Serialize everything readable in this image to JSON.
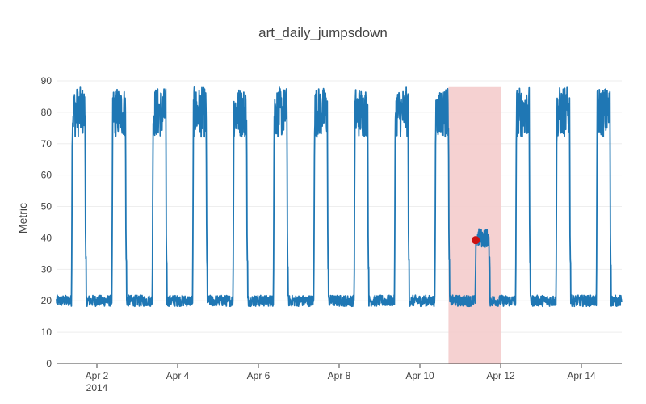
{
  "chart_data": {
    "type": "line",
    "title": "art_daily_jumpsdown",
    "xlabel": "",
    "ylabel": "Metric",
    "x_range": [
      "2014-04-01T00:00:00",
      "2014-04-15T00:00:00"
    ],
    "ylim": [
      0,
      90
    ],
    "y_ticks": [
      0,
      10,
      20,
      30,
      40,
      50,
      60,
      70,
      80,
      90
    ],
    "x_ticks": [
      {
        "date": "2014-04-02",
        "label": "Apr 2",
        "sublabel": "2014"
      },
      {
        "date": "2014-04-04",
        "label": "Apr 4",
        "sublabel": ""
      },
      {
        "date": "2014-04-06",
        "label": "Apr 6",
        "sublabel": ""
      },
      {
        "date": "2014-04-08",
        "label": "Apr 8",
        "sublabel": ""
      },
      {
        "date": "2014-04-10",
        "label": "Apr 10",
        "sublabel": ""
      },
      {
        "date": "2014-04-12",
        "label": "Apr 12",
        "sublabel": ""
      },
      {
        "date": "2014-04-14",
        "label": "Apr 14",
        "sublabel": ""
      }
    ],
    "grid": true,
    "legend": false,
    "series": [
      {
        "color": "#1f77b4",
        "daily_pattern": {
          "low_level": 20,
          "high_level": 80,
          "high_noise_range": [
            72,
            88
          ],
          "rise_time": "09:00",
          "fall_time": "17:00"
        },
        "days": [
          "2014-04-01",
          "2014-04-02",
          "2014-04-03",
          "2014-04-04",
          "2014-04-05",
          "2014-04-06",
          "2014-04-07",
          "2014-04-08",
          "2014-04-09",
          "2014-04-10",
          "2014-04-11",
          "2014-04-12",
          "2014-04-13",
          "2014-04-14"
        ],
        "anomalous_day": {
          "date": "2014-04-11",
          "high_level": 40
        }
      }
    ],
    "anomaly_region": {
      "start": "2014-04-10T17:00:00",
      "end": "2014-04-12T00:00:00",
      "color": "#f4cccc"
    },
    "anomaly_point": {
      "x": "2014-04-11T09:10:00",
      "y": 39.3,
      "color": "#cc1111"
    }
  }
}
